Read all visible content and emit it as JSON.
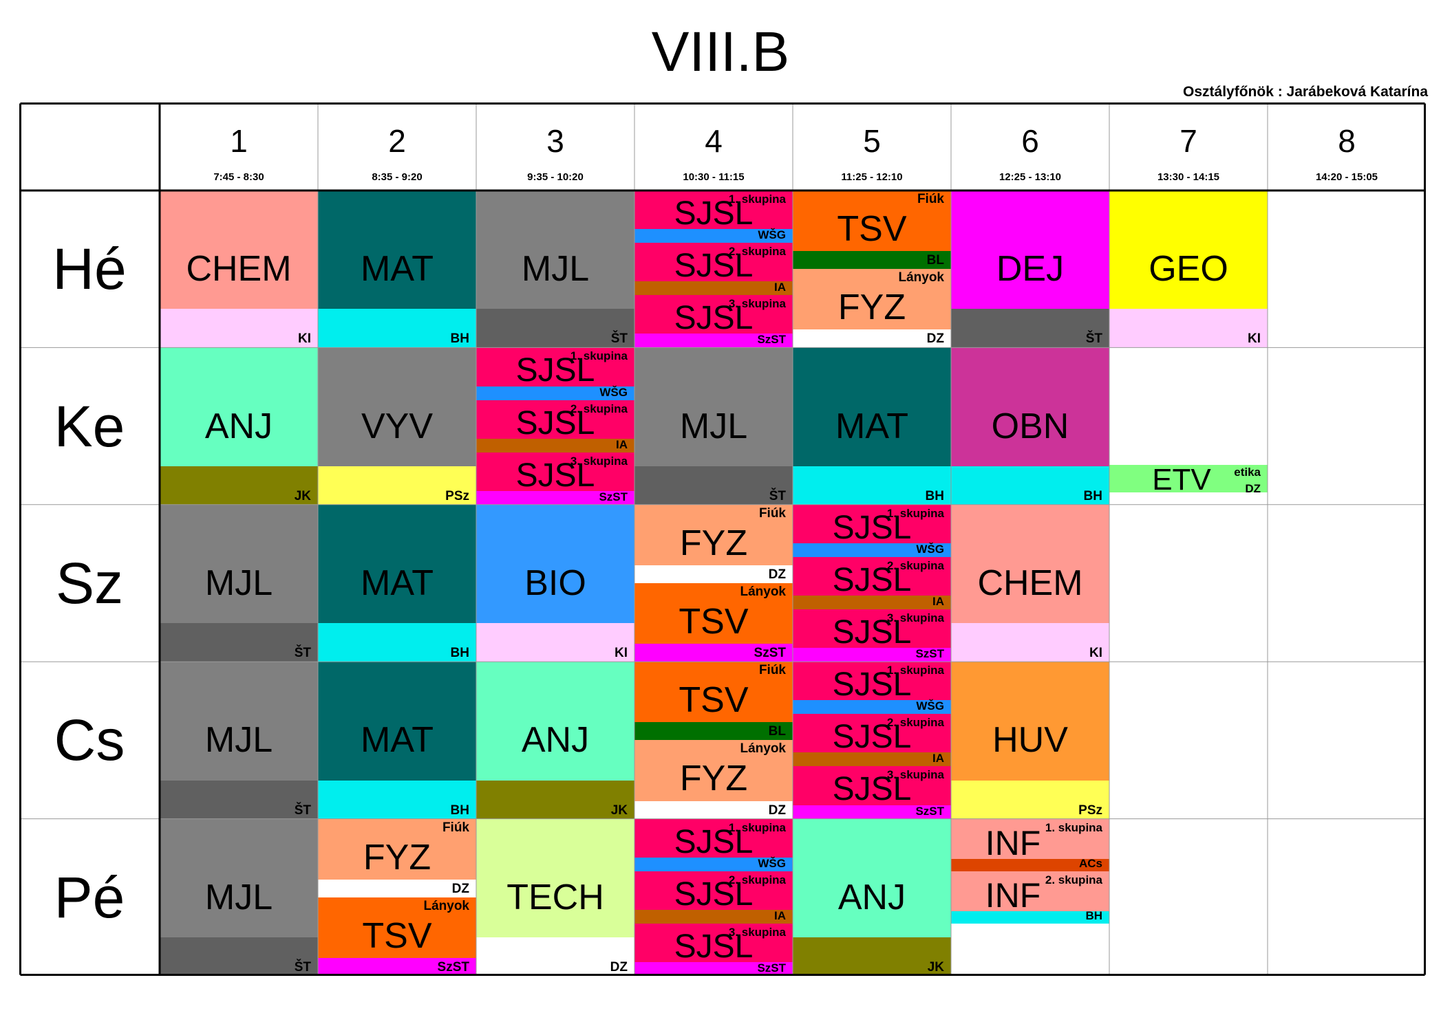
{
  "title": "VIII.B",
  "class_teacher": "Osztályfőnök : Jarábeková Katarína",
  "hours": [
    {
      "num": "1",
      "time": "7:45 - 8:30"
    },
    {
      "num": "2",
      "time": "8:35 - 9:20"
    },
    {
      "num": "3",
      "time": "9:35 - 10:20"
    },
    {
      "num": "4",
      "time": "10:30 - 11:15"
    },
    {
      "num": "5",
      "time": "11:25 - 12:10"
    },
    {
      "num": "6",
      "time": "12:25 - 13:10"
    },
    {
      "num": "7",
      "time": "13:30 - 14:15"
    },
    {
      "num": "8",
      "time": "14:20 - 15:05"
    }
  ],
  "days": [
    "Hé",
    "Ke",
    "Sz",
    "Cs",
    "Pé"
  ],
  "colors": {
    "chem": "#ff9a92",
    "mat": "#006868",
    "mjl": "#808080",
    "dej": "#ff00ff",
    "geo": "#ffff00",
    "anj": "#66ffc0",
    "obn": "#cc3399",
    "bio": "#3399ff",
    "tech": "#d9ff99",
    "huv": "#ff9933",
    "fyz": "#ffa070",
    "tsv": "#ff6600",
    "sjsl": "#ff0066",
    "inf": "#ff9a92",
    "etv": "#80ff80"
  },
  "lessons": [
    {
      "d": 0,
      "h": 0,
      "type": "single",
      "subject": "CHEM",
      "teacher": "KI",
      "bg": "#ff9a92",
      "bar": "#ffccff"
    },
    {
      "d": 0,
      "h": 1,
      "type": "single",
      "subject": "MAT",
      "teacher": "BH",
      "bg": "#006868",
      "bar": "#00eeee"
    },
    {
      "d": 0,
      "h": 2,
      "type": "single",
      "subject": "MJL",
      "teacher": "ŠT",
      "bg": "#808080",
      "bar": "#606060"
    },
    {
      "d": 0,
      "h": 3,
      "type": "groups",
      "subject": "SJSL",
      "parts": [
        {
          "label": "1. skupina",
          "teacher": "WŠG",
          "bg": "#ff0066",
          "bar": "#1e90ff"
        },
        {
          "label": "2. skupina",
          "teacher": "IA",
          "bg": "#ff0066",
          "bar": "#c06000"
        },
        {
          "label": "3. skupina",
          "teacher": "SzST",
          "bg": "#ff0066",
          "bar": "#ff00ff"
        }
      ]
    },
    {
      "d": 0,
      "h": 4,
      "type": "split",
      "parts": [
        {
          "subject": "TSV",
          "label": "Fiúk",
          "teacher": "BL",
          "bg": "#ff6600",
          "bar": "#007000"
        },
        {
          "subject": "FYZ",
          "label": "Lányok",
          "teacher": "DZ",
          "bg": "#ffa070",
          "bar": "#ffffff"
        }
      ]
    },
    {
      "d": 0,
      "h": 5,
      "type": "single",
      "subject": "DEJ",
      "teacher": "ŠT",
      "bg": "#ff00ff",
      "bar": "#606060"
    },
    {
      "d": 0,
      "h": 6,
      "type": "single",
      "subject": "GEO",
      "teacher": "KI",
      "bg": "#ffff00",
      "bar": "#ffccff"
    },
    {
      "d": 1,
      "h": 0,
      "type": "single",
      "subject": "ANJ",
      "teacher": "JK",
      "bg": "#66ffc0",
      "bar": "#808000"
    },
    {
      "d": 1,
      "h": 1,
      "type": "single",
      "subject": "VYV",
      "teacher": "PSz",
      "bg": "#808080",
      "bar": "#ffff55"
    },
    {
      "d": 1,
      "h": 2,
      "type": "groups",
      "subject": "SJSL",
      "parts": [
        {
          "label": "1. skupina",
          "teacher": "WŠG",
          "bg": "#ff0066",
          "bar": "#1e90ff"
        },
        {
          "label": "2. skupina",
          "teacher": "IA",
          "bg": "#ff0066",
          "bar": "#c06000"
        },
        {
          "label": "3. skupina",
          "teacher": "SzST",
          "bg": "#ff0066",
          "bar": "#ff00ff"
        }
      ]
    },
    {
      "d": 1,
      "h": 3,
      "type": "single",
      "subject": "MJL",
      "teacher": "ŠT",
      "bg": "#808080",
      "bar": "#606060"
    },
    {
      "d": 1,
      "h": 4,
      "type": "single",
      "subject": "MAT",
      "teacher": "BH",
      "bg": "#006868",
      "bar": "#00eeee"
    },
    {
      "d": 1,
      "h": 5,
      "type": "single",
      "subject": "OBN",
      "teacher": "BH",
      "bg": "#cc3399",
      "bar": "#00eeee"
    },
    {
      "d": 1,
      "h": 6,
      "type": "strip",
      "subject": "ETV",
      "label": "etika",
      "teacher": "DZ",
      "bg": "#80ff80"
    },
    {
      "d": 2,
      "h": 0,
      "type": "single",
      "subject": "MJL",
      "teacher": "ŠT",
      "bg": "#808080",
      "bar": "#606060"
    },
    {
      "d": 2,
      "h": 1,
      "type": "single",
      "subject": "MAT",
      "teacher": "BH",
      "bg": "#006868",
      "bar": "#00eeee"
    },
    {
      "d": 2,
      "h": 2,
      "type": "single",
      "subject": "BIO",
      "teacher": "KI",
      "bg": "#3399ff",
      "bar": "#ffccff"
    },
    {
      "d": 2,
      "h": 3,
      "type": "split",
      "parts": [
        {
          "subject": "FYZ",
          "label": "Fiúk",
          "teacher": "DZ",
          "bg": "#ffa070",
          "bar": "#ffffff"
        },
        {
          "subject": "TSV",
          "label": "Lányok",
          "teacher": "SzST",
          "bg": "#ff6600",
          "bar": "#ff00ff"
        }
      ]
    },
    {
      "d": 2,
      "h": 4,
      "type": "groups",
      "subject": "SJSL",
      "parts": [
        {
          "label": "1. skupina",
          "teacher": "WŠG",
          "bg": "#ff0066",
          "bar": "#1e90ff"
        },
        {
          "label": "2. skupina",
          "teacher": "IA",
          "bg": "#ff0066",
          "bar": "#c06000"
        },
        {
          "label": "3. skupina",
          "teacher": "SzST",
          "bg": "#ff0066",
          "bar": "#ff00ff"
        }
      ]
    },
    {
      "d": 2,
      "h": 5,
      "type": "single",
      "subject": "CHEM",
      "teacher": "KI",
      "bg": "#ff9a92",
      "bar": "#ffccff"
    },
    {
      "d": 3,
      "h": 0,
      "type": "single",
      "subject": "MJL",
      "teacher": "ŠT",
      "bg": "#808080",
      "bar": "#606060"
    },
    {
      "d": 3,
      "h": 1,
      "type": "single",
      "subject": "MAT",
      "teacher": "BH",
      "bg": "#006868",
      "bar": "#00eeee"
    },
    {
      "d": 3,
      "h": 2,
      "type": "single",
      "subject": "ANJ",
      "teacher": "JK",
      "bg": "#66ffc0",
      "bar": "#808000"
    },
    {
      "d": 3,
      "h": 3,
      "type": "split",
      "parts": [
        {
          "subject": "TSV",
          "label": "Fiúk",
          "teacher": "BL",
          "bg": "#ff6600",
          "bar": "#007000"
        },
        {
          "subject": "FYZ",
          "label": "Lányok",
          "teacher": "DZ",
          "bg": "#ffa070",
          "bar": "#ffffff"
        }
      ]
    },
    {
      "d": 3,
      "h": 4,
      "type": "groups",
      "subject": "SJSL",
      "parts": [
        {
          "label": "1. skupina",
          "teacher": "WŠG",
          "bg": "#ff0066",
          "bar": "#1e90ff"
        },
        {
          "label": "2. skupina",
          "teacher": "IA",
          "bg": "#ff0066",
          "bar": "#c06000"
        },
        {
          "label": "3. skupina",
          "teacher": "SzST",
          "bg": "#ff0066",
          "bar": "#ff00ff"
        }
      ]
    },
    {
      "d": 3,
      "h": 5,
      "type": "single",
      "subject": "HUV",
      "teacher": "PSz",
      "bg": "#ff9933",
      "bar": "#ffff55"
    },
    {
      "d": 4,
      "h": 0,
      "type": "single",
      "subject": "MJL",
      "teacher": "ŠT",
      "bg": "#808080",
      "bar": "#606060"
    },
    {
      "d": 4,
      "h": 1,
      "type": "split",
      "parts": [
        {
          "subject": "FYZ",
          "label": "Fiúk",
          "teacher": "DZ",
          "bg": "#ffa070",
          "bar": "#ffffff"
        },
        {
          "subject": "TSV",
          "label": "Lányok",
          "teacher": "SzST",
          "bg": "#ff6600",
          "bar": "#ff00ff"
        }
      ]
    },
    {
      "d": 4,
      "h": 2,
      "type": "single",
      "subject": "TECH",
      "teacher": "DZ",
      "bg": "#d9ff99",
      "bar": "#ffffff"
    },
    {
      "d": 4,
      "h": 3,
      "type": "groups",
      "subject": "SJSL",
      "parts": [
        {
          "label": "1. skupina",
          "teacher": "WŠG",
          "bg": "#ff0066",
          "bar": "#1e90ff"
        },
        {
          "label": "2. skupina",
          "teacher": "IA",
          "bg": "#ff0066",
          "bar": "#c06000"
        },
        {
          "label": "3. skupina",
          "teacher": "SzST",
          "bg": "#ff0066",
          "bar": "#ff00ff"
        }
      ]
    },
    {
      "d": 4,
      "h": 4,
      "type": "single",
      "subject": "ANJ",
      "teacher": "JK",
      "bg": "#66ffc0",
      "bar": "#808000"
    },
    {
      "d": 4,
      "h": 5,
      "type": "inf",
      "subject": "INF",
      "parts": [
        {
          "label": "1. skupina",
          "teacher": "ACs",
          "bg": "#ff9a92",
          "bar": "#dd4400"
        },
        {
          "label": "2. skupina",
          "teacher": "BH",
          "bg": "#ff9a92",
          "bar": "#00eeee"
        }
      ]
    }
  ]
}
